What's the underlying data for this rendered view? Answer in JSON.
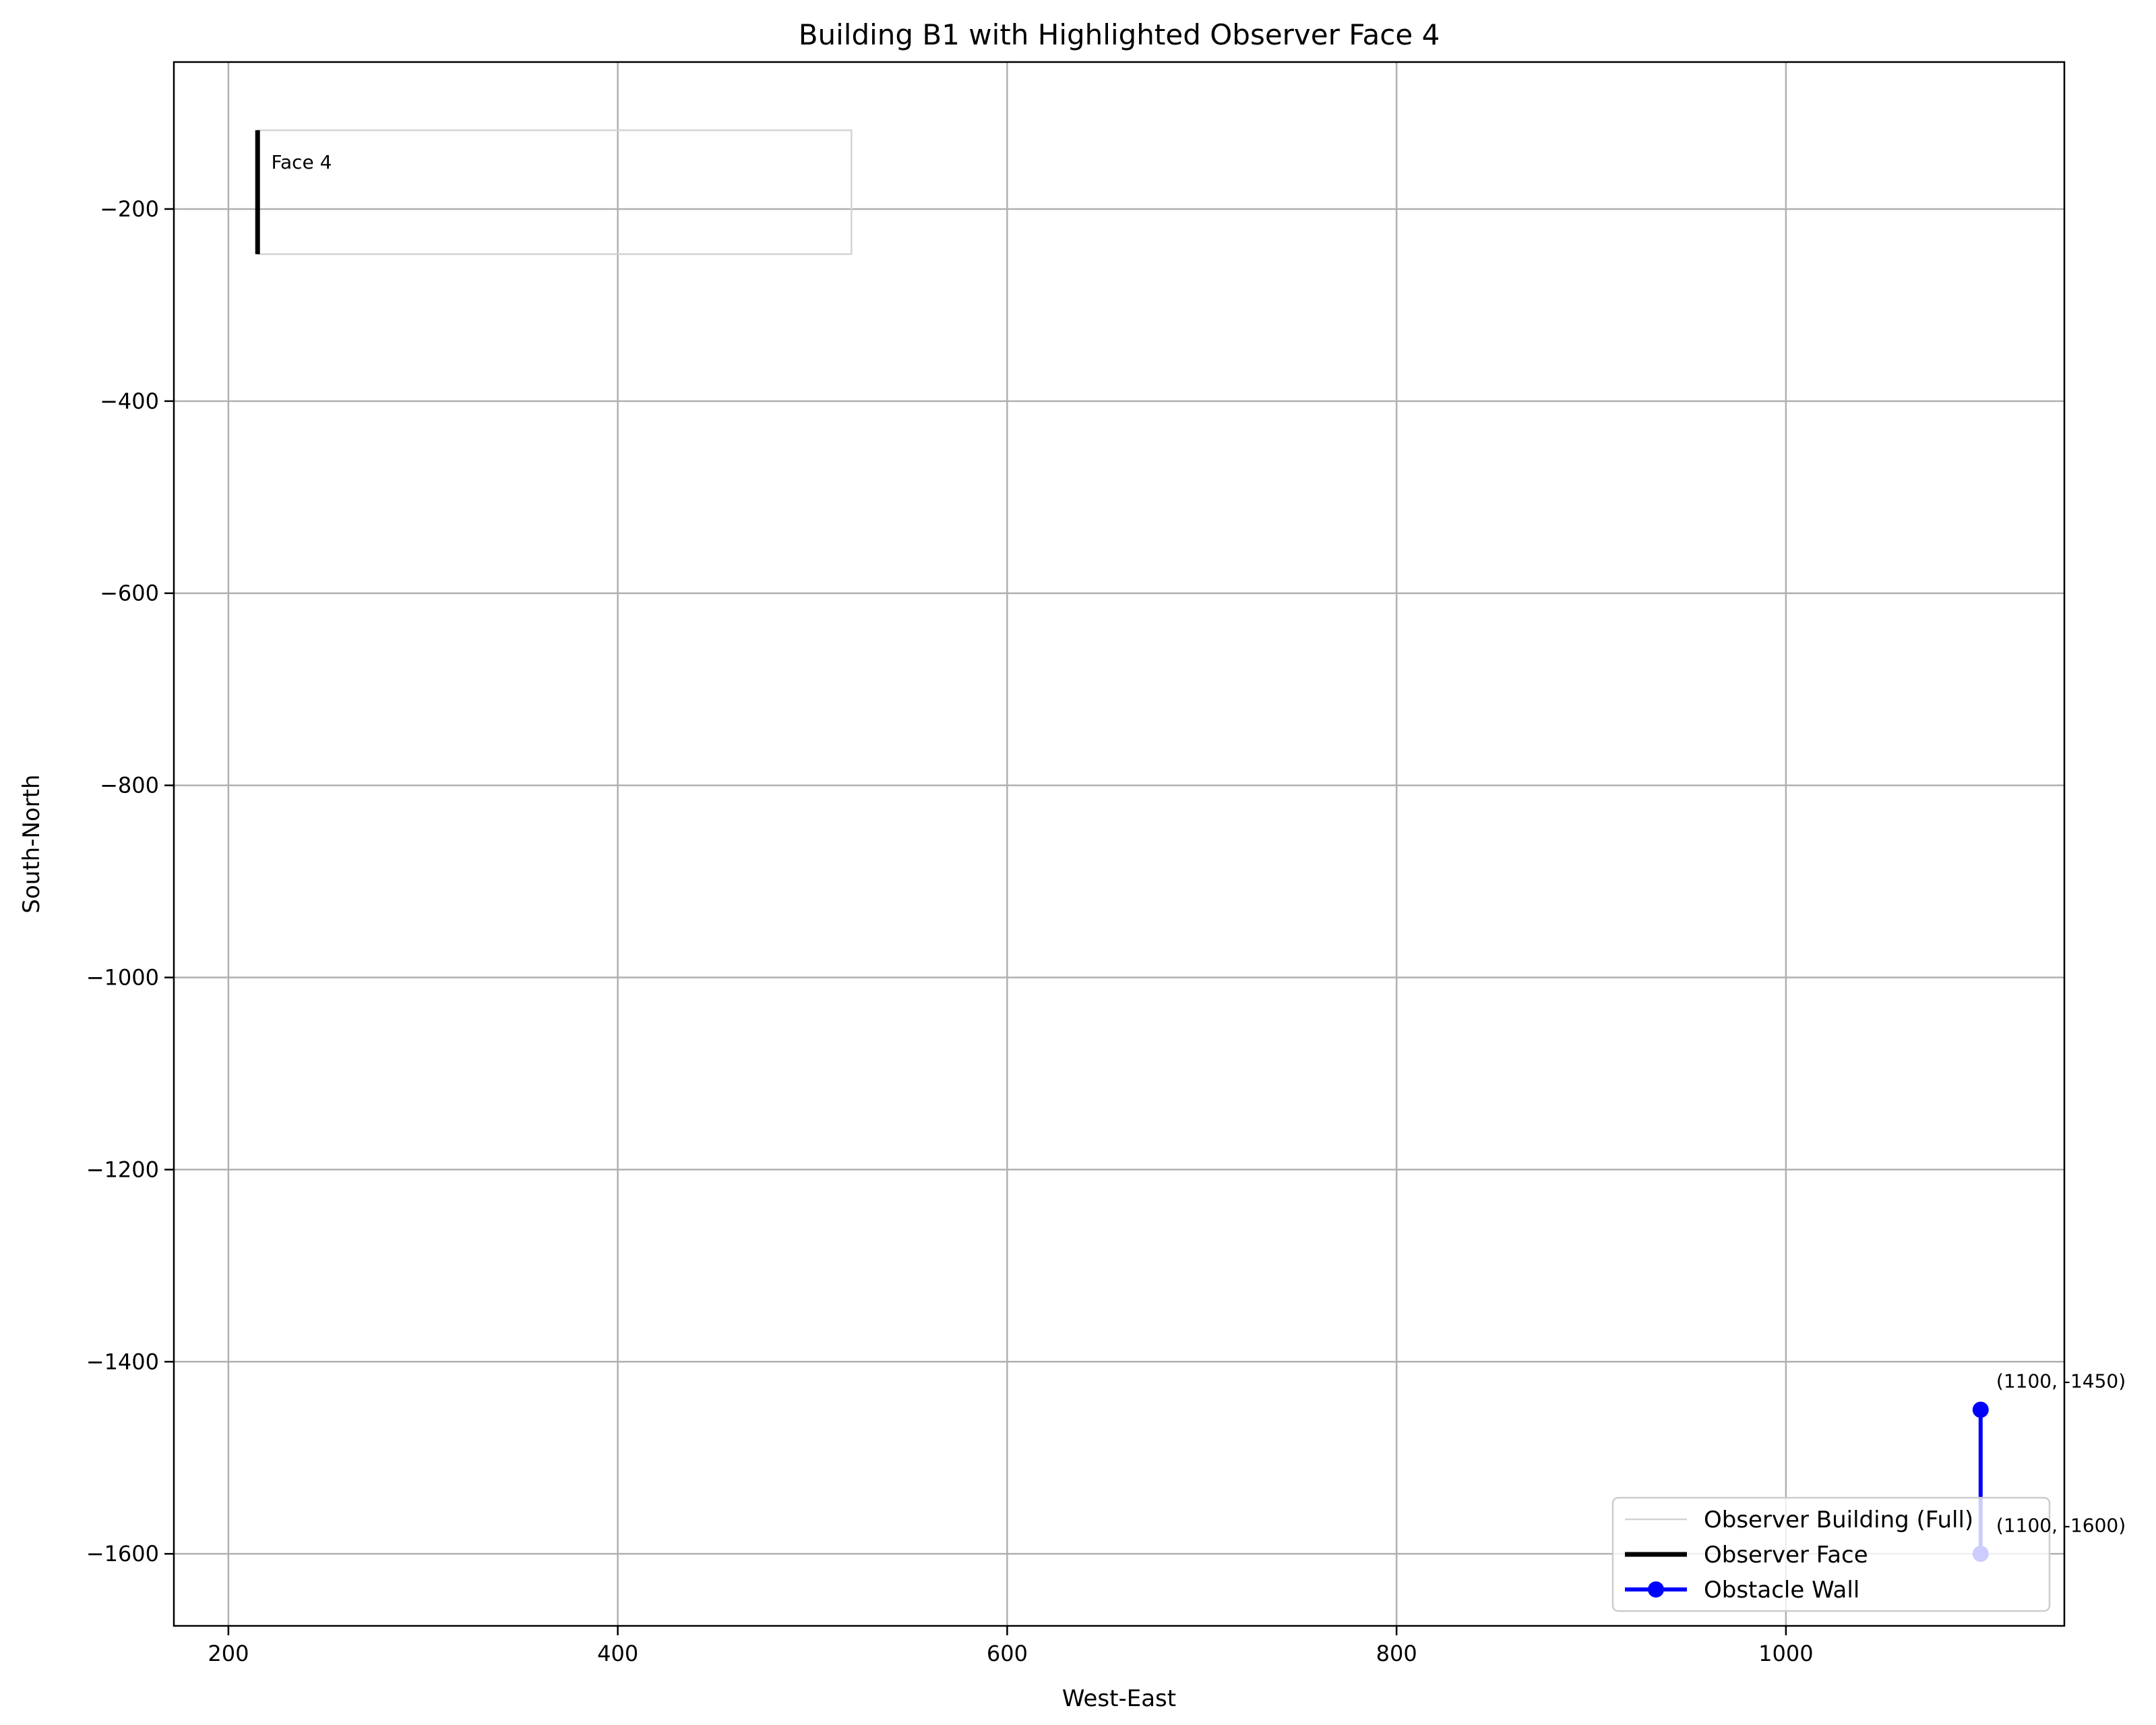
{
  "chart_data": {
    "type": "line",
    "title": "Building B1 with Highlighted Observer Face 4",
    "xlabel": "West-East",
    "ylabel": "South-North",
    "xlim": [
      172,
      1143
    ],
    "ylim": [
      -1675,
      -47
    ],
    "xticks": [
      200,
      400,
      600,
      800,
      1000
    ],
    "yticks": [
      -200,
      -400,
      -600,
      -800,
      -1000,
      -1200,
      -1400,
      -1600
    ],
    "xtick_labels": [
      "200",
      "400",
      "600",
      "800",
      "1000"
    ],
    "ytick_labels": [
      "−200",
      "−400",
      "−600",
      "−800",
      "−1000",
      "−1200",
      "−1400",
      "−1600"
    ],
    "grid": true,
    "legend_position": "lower right",
    "series": [
      {
        "name": "Observer Building (Full)",
        "color": "#d3d3d3",
        "x": [
          215,
          520,
          520,
          215,
          215
        ],
        "y": [
          -247,
          -247,
          -118,
          -118,
          -247
        ]
      },
      {
        "name": "Observer Face",
        "color": "#000000",
        "x": [
          215,
          215
        ],
        "y": [
          -247,
          -118
        ]
      },
      {
        "name": "Obstacle Wall",
        "color": "#0000ff",
        "markers": true,
        "x": [
          1100,
          1100
        ],
        "y": [
          -1450,
          -1600
        ]
      }
    ],
    "annotations": [
      {
        "text": "Face 4",
        "x": 222,
        "y": -158
      },
      {
        "text": "(1100, -1450)",
        "x": 1108,
        "y": -1427
      },
      {
        "text": "(1100, -1600)",
        "x": 1108,
        "y": -1577
      }
    ]
  }
}
